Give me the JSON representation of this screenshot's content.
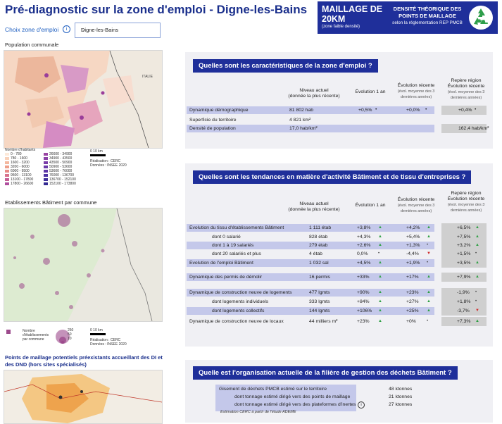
{
  "header": {
    "title": "Pré-diagnostic sur la zone d'emploi - Digne-les-Bains",
    "filter_label": "Choix zone d'emploi",
    "filter_value": "Digne-les-Bains"
  },
  "kpi": {
    "line1": "MAILLAGE DE",
    "line2": "20KM",
    "note": "(zone faible densité)",
    "right1": "DENSITÉ THÉORIQUE DES",
    "right2": "POINTS DE MAILLAGE",
    "right3": "selon la réglementation REP PMCB",
    "icon": "recycle-icon"
  },
  "maps": {
    "population": {
      "title": "Population communale",
      "country_label": "ITALIE",
      "legend_title": "Nombre d'habitants",
      "legend_left": [
        "0 - 780",
        "780 - 1600",
        "1600 - 3200",
        "3200 - 6000",
        "6000 - 9500",
        "9500 - 13100",
        "13100 - 17800",
        "17800 - 26600"
      ],
      "legend_right": [
        "26600 - 34900",
        "34900 - 43500",
        "43500 - 50900",
        "50900 - 53600",
        "53600 - 76000",
        "76000 - 136700",
        "136700 - 152100",
        "152100 - 173800"
      ],
      "scale": "0      10 km",
      "credit1": "Réalisation : CERC",
      "credit2": "Données : INSEE 2020"
    },
    "etablissements": {
      "title": "Etablissements Bâtiment par commune",
      "legend_label1": "Nombre",
      "legend_label2": "d'établissements",
      "legend_label3": "par commune",
      "legend_values": [
        "250",
        "50",
        "10"
      ],
      "scale": "0      10 km",
      "credit1": "Réalisation : CERC",
      "credit2": "Données : INSEE 2020"
    },
    "maillage": {
      "title1": "Points de maillage potentiels préexistants accueillant des DI et",
      "title2": "des DND (hors sites spécialisés)"
    }
  },
  "sections": {
    "caracteristiques": {
      "header": "Quelles sont les caractéristiques de la zone d'emploi ?",
      "col_niveau": "Niveau actuel",
      "col_niveau_sub": "(donnée la plus récente)",
      "col_evol1": "Évolution 1 an",
      "col_evol_rec": "Évolution récente",
      "col_evol_rec_sub": "(évol. moyenne des 3 dernières années)",
      "col_repere": "Repère région",
      "col_repere2": "Évolution récente",
      "col_repere_sub": "(évol. moyenne des 3 dernières années)",
      "rows": [
        {
          "label": "Dynamique démographique",
          "niveau": "81 802 hab",
          "evol1": "+0,5%",
          "evol1_mark": "•",
          "evolrec": "+0,0%",
          "evolrec_mark": "•",
          "repere": "+0,4%",
          "repere_mark": "•"
        },
        {
          "label": "Superficie du territoire",
          "niveau": "4 821 km²",
          "evol1": "",
          "evol1_mark": "",
          "evolrec": "",
          "evolrec_mark": "",
          "repere": "",
          "repere_mark": ""
        },
        {
          "label": "Densité de population",
          "niveau": "17,0 hab/km²",
          "evol1": "",
          "evol1_mark": "",
          "evolrec": "",
          "evolrec_mark": "",
          "repere": "162,4 hab/km²",
          "repere_mark": ""
        }
      ]
    },
    "tendances": {
      "header": "Quelles sont les tendances en matière d'activité Bâtiment et de tissu d'entreprises ?",
      "col_niveau": "Niveau actuel",
      "col_niveau_sub": "(donnée la plus récente)",
      "col_evol1": "Évolution 1 an",
      "col_evol_rec": "Évolution récente",
      "col_evol_rec_sub": "(évol. moyenne des 3 dernières années)",
      "col_repere": "Repère région",
      "col_repere2": "Évolution récente",
      "col_repere_sub": "(évol. moyenne des 3 dernières années)",
      "rows": [
        {
          "label": "Evolution du tissu d'établissements Bâtiment",
          "indent": false,
          "band": true,
          "niveau": "1 111 étab",
          "evol1": "+3,8%",
          "evol1_dir": "up",
          "evolrec": "+4,2%",
          "evolrec_dir": "up",
          "repere": "+6,5%",
          "repere_dir": "up"
        },
        {
          "label": "dont 0 salarié",
          "indent": true,
          "band": false,
          "niveau": "828 étab",
          "evol1": "+4,3%",
          "evol1_dir": "up",
          "evolrec": "+5,4%",
          "evolrec_dir": "up",
          "repere": "+7,5%",
          "repere_dir": "up"
        },
        {
          "label": "dont 1 à 19 salariés",
          "indent": true,
          "band": true,
          "niveau": "279 étab",
          "evol1": "+2,6%",
          "evol1_dir": "up",
          "evolrec": "+1,3%",
          "evolrec_dir": "neutral",
          "repere": "+3,2%",
          "repere_dir": "up"
        },
        {
          "label": "dont 20 salariés et plus",
          "indent": true,
          "band": false,
          "niveau": "4 étab",
          "evol1": "0,0%",
          "evol1_dir": "neutral",
          "evolrec": "-4,4%",
          "evolrec_dir": "down",
          "repere": "+1,5%",
          "repere_dir": "neutral"
        },
        {
          "label": "Evolution de l'emploi Bâtiment",
          "indent": false,
          "band": true,
          "niveau": "1 032 sal",
          "evol1": "+4,5%",
          "evol1_dir": "up",
          "evolrec": "+1,9%",
          "evolrec_dir": "neutral",
          "repere": "+3,5%",
          "repere_dir": "up"
        },
        {
          "label": "Dynamique des permis de démolir",
          "indent": false,
          "band": true,
          "niveau": "16 permis",
          "evol1": "+33%",
          "evol1_dir": "up",
          "evolrec": "+17%",
          "evolrec_dir": "up",
          "repere": "+7,9%",
          "repere_dir": "up"
        },
        {
          "label": "Dynamique de construction neuve de logements",
          "indent": false,
          "band": true,
          "niveau": "477 lgmts",
          "evol1": "+90%",
          "evol1_dir": "up",
          "evolrec": "+23%",
          "evolrec_dir": "up",
          "repere": "-1,9%",
          "repere_dir": "neutral"
        },
        {
          "label": "dont logements individuels",
          "indent": true,
          "band": false,
          "niveau": "333 lgmts",
          "evol1": "+84%",
          "evol1_dir": "up",
          "evolrec": "+27%",
          "evolrec_dir": "up",
          "repere": "+1,8%",
          "repere_dir": "neutral"
        },
        {
          "label": "dont logements collectifs",
          "indent": true,
          "band": true,
          "niveau": "144 lgmts",
          "evol1": "+106%",
          "evol1_dir": "up",
          "evolrec": "+25%",
          "evolrec_dir": "up",
          "repere": "-3,7%",
          "repere_dir": "down"
        },
        {
          "label": "Dynamique de construction neuve de locaux",
          "indent": false,
          "band": false,
          "niveau": "44 milliers m²",
          "evol1": "+23%",
          "evol1_dir": "up",
          "evolrec": "+0%",
          "evolrec_dir": "neutral",
          "repere": "+7,3%",
          "repere_dir": "up"
        }
      ]
    },
    "organisation": {
      "header": "Quelle est l'organisation actuelle de la filière de gestion des déchets Bâtiment ?",
      "rows": [
        {
          "label": "Gisement de déchets PMCB estimé sur le territoire",
          "value": "48 ktonnes"
        },
        {
          "label": "dont tonnage estimé dirigé vers des points de maillage",
          "value": "21 ktonnes"
        },
        {
          "label": "dont tonnage estimé dirigé vers des plateformes d'inertes",
          "value": "27 ktonnes"
        }
      ],
      "note": "Estimation CERC à partir de l'étude ADEME"
    }
  },
  "colors": {
    "brand": "#1f2f9a",
    "band": "#c4c8ea",
    "up": "#2ea044",
    "down": "#d03030"
  }
}
